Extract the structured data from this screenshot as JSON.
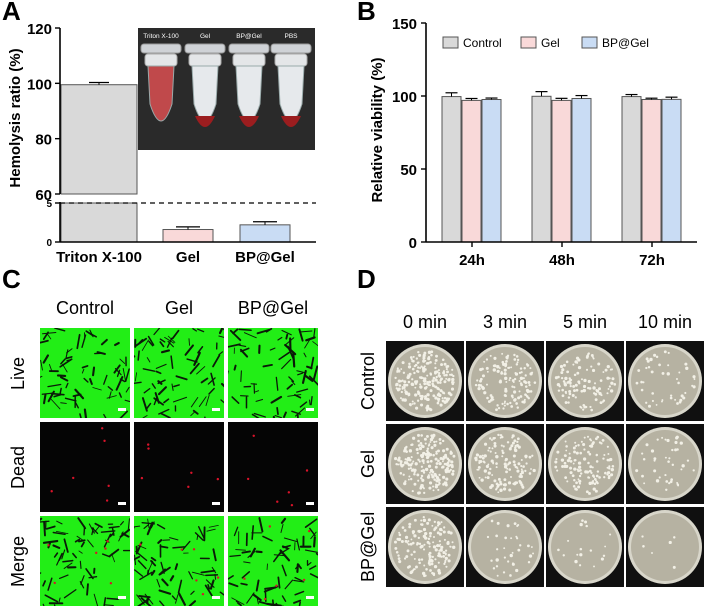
{
  "panels": {
    "a": "A",
    "b": "B",
    "c": "C",
    "d": "D"
  },
  "colors": {
    "triton": "#d9d9d9",
    "gel": "#f9d9d9",
    "bp": "#c9dcf4",
    "live": "#22ee16",
    "dead_bg": "#050505",
    "dead_dot": "#d9132a",
    "plate_bg": "#101010",
    "plate_agar": "#b6b2a2",
    "colony": "#f2f0e6"
  },
  "chart_data": [
    {
      "type": "bar",
      "panel": "A",
      "ylabel": "Hemolysis ratio (%)",
      "categories": [
        "Triton X-100",
        "Gel",
        "BP@Gel"
      ],
      "values": [
        99.5,
        1.6,
        2.2
      ],
      "errors": [
        0.8,
        0.15,
        0.2
      ],
      "ylim": [
        0,
        120
      ],
      "axis_break": true,
      "upper_ticks": [
        "60",
        "80",
        "100",
        "120"
      ],
      "lower_ticks": [
        "0",
        "5"
      ],
      "dashed_line_at": 5,
      "inset_labels": [
        "Triton X-100",
        "Gel",
        "BP@Gel",
        "PBS"
      ]
    },
    {
      "type": "bar",
      "panel": "B",
      "ylabel": "Relative viability (%)",
      "categories": [
        "24h",
        "48h",
        "72h"
      ],
      "series": [
        {
          "name": "Control",
          "values": [
            99.6,
            99.8,
            99.6
          ],
          "errors": [
            2.6,
            3.2,
            1.4
          ]
        },
        {
          "name": "Gel",
          "values": [
            97.0,
            97.0,
            97.6
          ],
          "errors": [
            1.3,
            1.4,
            0.9
          ]
        },
        {
          "name": "BP@Gel",
          "values": [
            97.6,
            98.3,
            97.7
          ],
          "errors": [
            1.0,
            2.0,
            1.5
          ]
        }
      ],
      "yticks": [
        "0",
        "50",
        "100",
        "150"
      ],
      "ylim": [
        0,
        150
      ],
      "legend_position": "top"
    }
  ],
  "panel_c": {
    "columns": [
      "Control",
      "Gel",
      "BP@Gel"
    ],
    "rows": [
      "Live",
      "Dead",
      "Merge"
    ]
  },
  "panel_d": {
    "columns": [
      "0 min",
      "3 min",
      "5 min",
      "10 min"
    ],
    "rows": [
      "Control",
      "Gel",
      "BP@Gel"
    ]
  }
}
